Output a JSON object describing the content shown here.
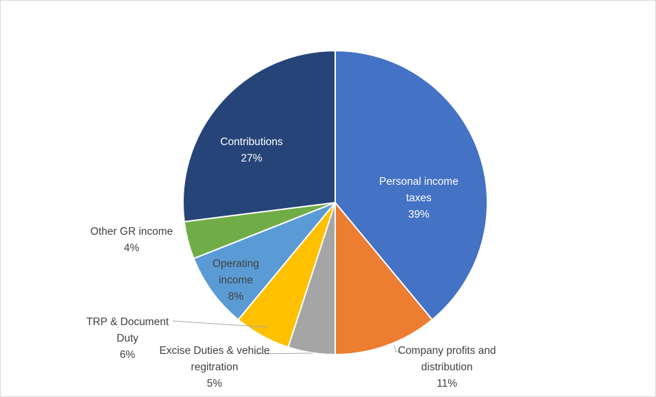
{
  "chart_data": {
    "type": "pie",
    "categories": [
      "Personal income taxes",
      "Company profits and distribution",
      "Excise Duties & vehicle regitration",
      "TRP & Document Duty",
      "Operating income",
      "Other GR income",
      "Contributions"
    ],
    "values": [
      39,
      11,
      5,
      6,
      8,
      4,
      27
    ],
    "value_labels": [
      "39%",
      "11%",
      "5%",
      "6%",
      "8%",
      "4%",
      "27%"
    ],
    "colors": [
      "#4472c4",
      "#ed7d31",
      "#a5a5a5",
      "#ffc000",
      "#5b9bd5",
      "#70ad47",
      "#264478"
    ]
  }
}
